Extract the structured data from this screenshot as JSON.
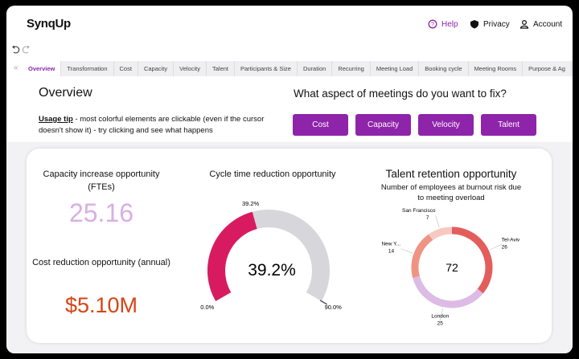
{
  "header": {
    "logo": "SynqUp",
    "nav": [
      "Help",
      "Privacy",
      "Account"
    ]
  },
  "tabs": [
    "Overview",
    "Transformation",
    "Cost",
    "Capacity",
    "Velocity",
    "Talent",
    "Participants & Size",
    "Duration",
    "Recurring",
    "Meeting Load",
    "Booking cycle",
    "Meeting Rooms",
    "Purpose & Ag"
  ],
  "overview": {
    "title": "Overview",
    "tip_label": "Usage tip",
    "tip_text": " - most colorful elements are clickable (even if the cursor doesn't show it) - try clicking and see what happens"
  },
  "fix": {
    "question": "What aspect of meetings do you want to fix?",
    "buttons": [
      "Cost",
      "Capacity",
      "Velocity",
      "Talent"
    ]
  },
  "capacity": {
    "title": "Capacity increase opportunity (FTEs)",
    "value": 25.16
  },
  "cost": {
    "title": "Cost reduction opportunity (annual)",
    "value": "$5.10M"
  },
  "cycle_time": {
    "title": "Cycle time reduction opportunity",
    "value": 39.2,
    "value_label": "39.2%",
    "min": {
      "value": 0,
      "label": "0.0%"
    },
    "max": {
      "value": 90,
      "label": "90.0%"
    },
    "color": "#d81b60",
    "track_color": "#d7d6da"
  },
  "talent": {
    "title": "Talent retention opportunity",
    "subtitle": "Number of employees at burnout risk due to meeting overload",
    "total": 72,
    "slices": [
      {
        "name": "Tel-Aviv",
        "value": 26,
        "color": "#e35d5d"
      },
      {
        "name": "London",
        "value": 25,
        "color": "#dcbbe5"
      },
      {
        "name": "New Y...",
        "value": 14,
        "color": "#ef9484"
      },
      {
        "name": "San Francisco",
        "value": 7,
        "color": "#f7c8c1"
      }
    ]
  }
}
